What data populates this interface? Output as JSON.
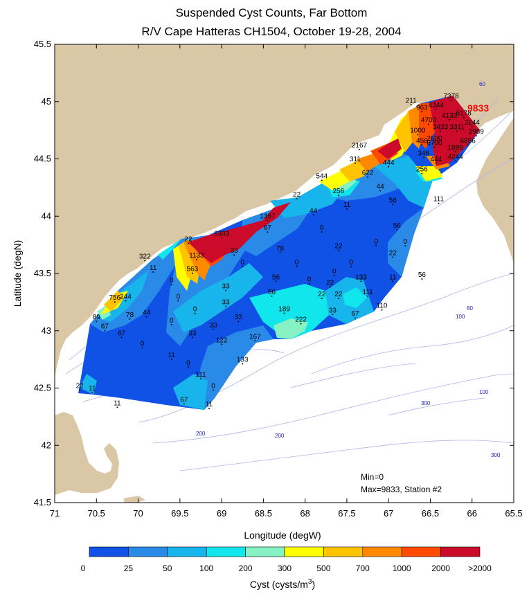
{
  "title_line1": "Suspended Cyst Counts, Far Bottom",
  "title_line2": "R/V Cape Hatteras CH1504, October 19-28, 2004",
  "x_axis_label": "Longitude (degW)",
  "y_axis_label": "Latitude (degN)",
  "x_ticks": [
    "71",
    "70.5",
    "70",
    "69.5",
    "69",
    "68.5",
    "68",
    "67.5",
    "67",
    "66.5",
    "66",
    "65.5"
  ],
  "y_ticks": [
    "45.5",
    "45",
    "44.5",
    "44",
    "43.5",
    "43",
    "42.5",
    "42",
    "41.5"
  ],
  "min_note": "Min=0",
  "max_note": "Max=9833, Station #2",
  "highlight_label": "9833",
  "colorbar": {
    "label": "Cyst (cysts/m",
    "label_sup": "3",
    "label_close": ")",
    "ticks": [
      "0",
      "25",
      "50",
      "100",
      "200",
      "300",
      "500",
      "700",
      "1000",
      "2000",
      ">2000"
    ],
    "colors": [
      "#1052e6",
      "#2a8ae8",
      "#18b4ec",
      "#10e6ec",
      "#86f2c4",
      "#ffff00",
      "#ffc400",
      "#ff8a00",
      "#ff4a00",
      "#cc0a2a"
    ]
  },
  "isobath_labels": [
    "60",
    "60",
    "100",
    "100",
    "200",
    "200",
    "300",
    "300"
  ],
  "chart_data": {
    "type": "heatmap",
    "xlim": [
      -71,
      -65.5
    ],
    "ylim": [
      41.5,
      45.5
    ],
    "station_labels": [
      {
        "lon": -66.25,
        "lat": 45.03,
        "v": "7378"
      },
      {
        "lon": -66.43,
        "lat": 44.95,
        "v": "4344"
      },
      {
        "lon": -66.27,
        "lat": 44.86,
        "v": "4133"
      },
      {
        "lon": -66.1,
        "lat": 44.88,
        "v": "6178"
      },
      {
        "lon": -66.0,
        "lat": 44.8,
        "v": "3244"
      },
      {
        "lon": -65.95,
        "lat": 44.72,
        "v": "2989"
      },
      {
        "lon": -66.38,
        "lat": 44.76,
        "v": "3433"
      },
      {
        "lon": -66.18,
        "lat": 44.76,
        "v": "3311"
      },
      {
        "lon": -66.6,
        "lat": 44.93,
        "v": "963"
      },
      {
        "lon": -66.73,
        "lat": 44.99,
        "v": "211"
      },
      {
        "lon": -66.52,
        "lat": 44.82,
        "v": "4700"
      },
      {
        "lon": -66.65,
        "lat": 44.73,
        "v": "1000"
      },
      {
        "lon": -66.45,
        "lat": 44.66,
        "v": "2600"
      },
      {
        "lon": -66.6,
        "lat": 44.64,
        "v": "456"
      },
      {
        "lon": -66.45,
        "lat": 44.62,
        "v": "6700"
      },
      {
        "lon": -66.2,
        "lat": 44.58,
        "v": "1889"
      },
      {
        "lon": -66.05,
        "lat": 44.64,
        "v": "6856"
      },
      {
        "lon": -66.58,
        "lat": 44.53,
        "v": "346"
      },
      {
        "lon": -66.43,
        "lat": 44.48,
        "v": "444"
      },
      {
        "lon": -66.2,
        "lat": 44.5,
        "v": "4244"
      },
      {
        "lon": -67.35,
        "lat": 44.6,
        "v": "2167"
      },
      {
        "lon": -67.4,
        "lat": 44.48,
        "v": "311"
      },
      {
        "lon": -67.0,
        "lat": 44.45,
        "v": "444"
      },
      {
        "lon": -67.25,
        "lat": 44.36,
        "v": "622"
      },
      {
        "lon": -66.6,
        "lat": 44.39,
        "v": "256"
      },
      {
        "lon": -67.8,
        "lat": 44.33,
        "v": "544"
      },
      {
        "lon": -67.6,
        "lat": 44.2,
        "v": "256"
      },
      {
        "lon": -67.1,
        "lat": 44.24,
        "v": "44"
      },
      {
        "lon": -68.1,
        "lat": 44.17,
        "v": "22"
      },
      {
        "lon": -67.5,
        "lat": 44.08,
        "v": "11"
      },
      {
        "lon": -66.95,
        "lat": 44.12,
        "v": "56"
      },
      {
        "lon": -66.4,
        "lat": 44.13,
        "v": "111"
      },
      {
        "lon": -68.45,
        "lat": 43.98,
        "v": "1367"
      },
      {
        "lon": -67.9,
        "lat": 44.03,
        "v": "44"
      },
      {
        "lon": -68.45,
        "lat": 43.88,
        "v": "67"
      },
      {
        "lon": -67.8,
        "lat": 43.88,
        "v": "0"
      },
      {
        "lon": -66.9,
        "lat": 43.9,
        "v": "56"
      },
      {
        "lon": -69.0,
        "lat": 43.83,
        "v": "9333"
      },
      {
        "lon": -69.4,
        "lat": 43.78,
        "v": "22"
      },
      {
        "lon": -68.85,
        "lat": 43.68,
        "v": "33"
      },
      {
        "lon": -68.3,
        "lat": 43.7,
        "v": "78"
      },
      {
        "lon": -67.6,
        "lat": 43.72,
        "v": "22"
      },
      {
        "lon": -67.15,
        "lat": 43.76,
        "v": "0"
      },
      {
        "lon": -66.8,
        "lat": 43.76,
        "v": "0"
      },
      {
        "lon": -69.3,
        "lat": 43.64,
        "v": "1133"
      },
      {
        "lon": -69.92,
        "lat": 43.63,
        "v": "322"
      },
      {
        "lon": -68.75,
        "lat": 43.58,
        "v": "0"
      },
      {
        "lon": -68.1,
        "lat": 43.58,
        "v": "0"
      },
      {
        "lon": -67.45,
        "lat": 43.58,
        "v": "0"
      },
      {
        "lon": -66.95,
        "lat": 43.66,
        "v": "22"
      },
      {
        "lon": -69.82,
        "lat": 43.53,
        "v": "11"
      },
      {
        "lon": -69.35,
        "lat": 43.52,
        "v": "563"
      },
      {
        "lon": -68.35,
        "lat": 43.45,
        "v": "56"
      },
      {
        "lon": -67.65,
        "lat": 43.5,
        "v": "0"
      },
      {
        "lon": -67.95,
        "lat": 43.43,
        "v": "0"
      },
      {
        "lon": -67.33,
        "lat": 43.45,
        "v": "133"
      },
      {
        "lon": -66.95,
        "lat": 43.45,
        "v": "11"
      },
      {
        "lon": -66.6,
        "lat": 43.47,
        "v": "56"
      },
      {
        "lon": -69.6,
        "lat": 43.42,
        "v": "0"
      },
      {
        "lon": -68.95,
        "lat": 43.37,
        "v": "33"
      },
      {
        "lon": -67.7,
        "lat": 43.4,
        "v": "22"
      },
      {
        "lon": -68.4,
        "lat": 43.32,
        "v": "56"
      },
      {
        "lon": -67.8,
        "lat": 43.3,
        "v": "22"
      },
      {
        "lon": -67.6,
        "lat": 43.3,
        "v": "22"
      },
      {
        "lon": -67.25,
        "lat": 43.32,
        "v": "111"
      },
      {
        "lon": -70.28,
        "lat": 43.27,
        "v": "756"
      },
      {
        "lon": -70.15,
        "lat": 43.28,
        "v": "244"
      },
      {
        "lon": -69.52,
        "lat": 43.28,
        "v": "0"
      },
      {
        "lon": -68.95,
        "lat": 43.23,
        "v": "33"
      },
      {
        "lon": -67.08,
        "lat": 43.2,
        "v": "110"
      },
      {
        "lon": -68.25,
        "lat": 43.17,
        "v": "189"
      },
      {
        "lon": -67.67,
        "lat": 43.16,
        "v": "33"
      },
      {
        "lon": -67.4,
        "lat": 43.13,
        "v": "67"
      },
      {
        "lon": -70.5,
        "lat": 43.1,
        "v": "89"
      },
      {
        "lon": -69.9,
        "lat": 43.14,
        "v": "44"
      },
      {
        "lon": -70.1,
        "lat": 43.12,
        "v": "78"
      },
      {
        "lon": -69.32,
        "lat": 43.17,
        "v": "0"
      },
      {
        "lon": -68.8,
        "lat": 43.1,
        "v": "33"
      },
      {
        "lon": -68.05,
        "lat": 43.08,
        "v": "222"
      },
      {
        "lon": -70.4,
        "lat": 43.02,
        "v": "67"
      },
      {
        "lon": -69.6,
        "lat": 43.07,
        "v": "0"
      },
      {
        "lon": -69.1,
        "lat": 43.03,
        "v": "33"
      },
      {
        "lon": -70.2,
        "lat": 42.96,
        "v": "67"
      },
      {
        "lon": -69.35,
        "lat": 42.96,
        "v": "33"
      },
      {
        "lon": -68.6,
        "lat": 42.93,
        "v": "167"
      },
      {
        "lon": -69.95,
        "lat": 42.87,
        "v": "0"
      },
      {
        "lon": -69.0,
        "lat": 42.9,
        "v": "122"
      },
      {
        "lon": -69.6,
        "lat": 42.77,
        "v": "11"
      },
      {
        "lon": -68.75,
        "lat": 42.73,
        "v": "133"
      },
      {
        "lon": -69.4,
        "lat": 42.7,
        "v": "0"
      },
      {
        "lon": -69.25,
        "lat": 42.6,
        "v": "111"
      },
      {
        "lon": -70.7,
        "lat": 42.5,
        "v": "22"
      },
      {
        "lon": -70.55,
        "lat": 42.48,
        "v": "11"
      },
      {
        "lon": -69.1,
        "lat": 42.5,
        "v": "0"
      },
      {
        "lon": -70.25,
        "lat": 42.35,
        "v": "11"
      },
      {
        "lon": -69.45,
        "lat": 42.38,
        "v": "67"
      },
      {
        "lon": -69.15,
        "lat": 42.34,
        "v": "11"
      }
    ]
  }
}
